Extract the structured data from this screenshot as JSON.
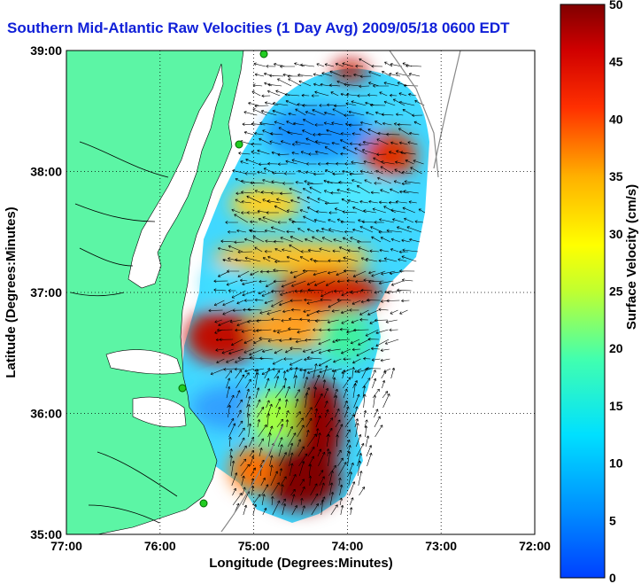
{
  "title": "Southern Mid-Atlantic Raw Velocities (1 Day Avg) 2009/05/18 0600 EDT",
  "axes": {
    "xlabel": "Longitude (Degrees:Minutes)",
    "ylabel": "Latitude (Degrees:Minutes)",
    "xticks": [
      "77:00",
      "76:00",
      "75:00",
      "74:00",
      "73:00",
      "72:00"
    ],
    "yticks": [
      "39:00",
      "38:00",
      "37:00",
      "36:00",
      "35:00"
    ]
  },
  "colorbar": {
    "label": "Surface Velocity (cm/s)",
    "ticks": [
      "50",
      "45",
      "40",
      "35",
      "30",
      "25",
      "20",
      "15",
      "10",
      "5",
      "0"
    ],
    "min": 0,
    "max": 50
  },
  "colors": {
    "land": "#5cf5a5",
    "title": "#1020d8",
    "water_bg": "#ffffff"
  }
}
